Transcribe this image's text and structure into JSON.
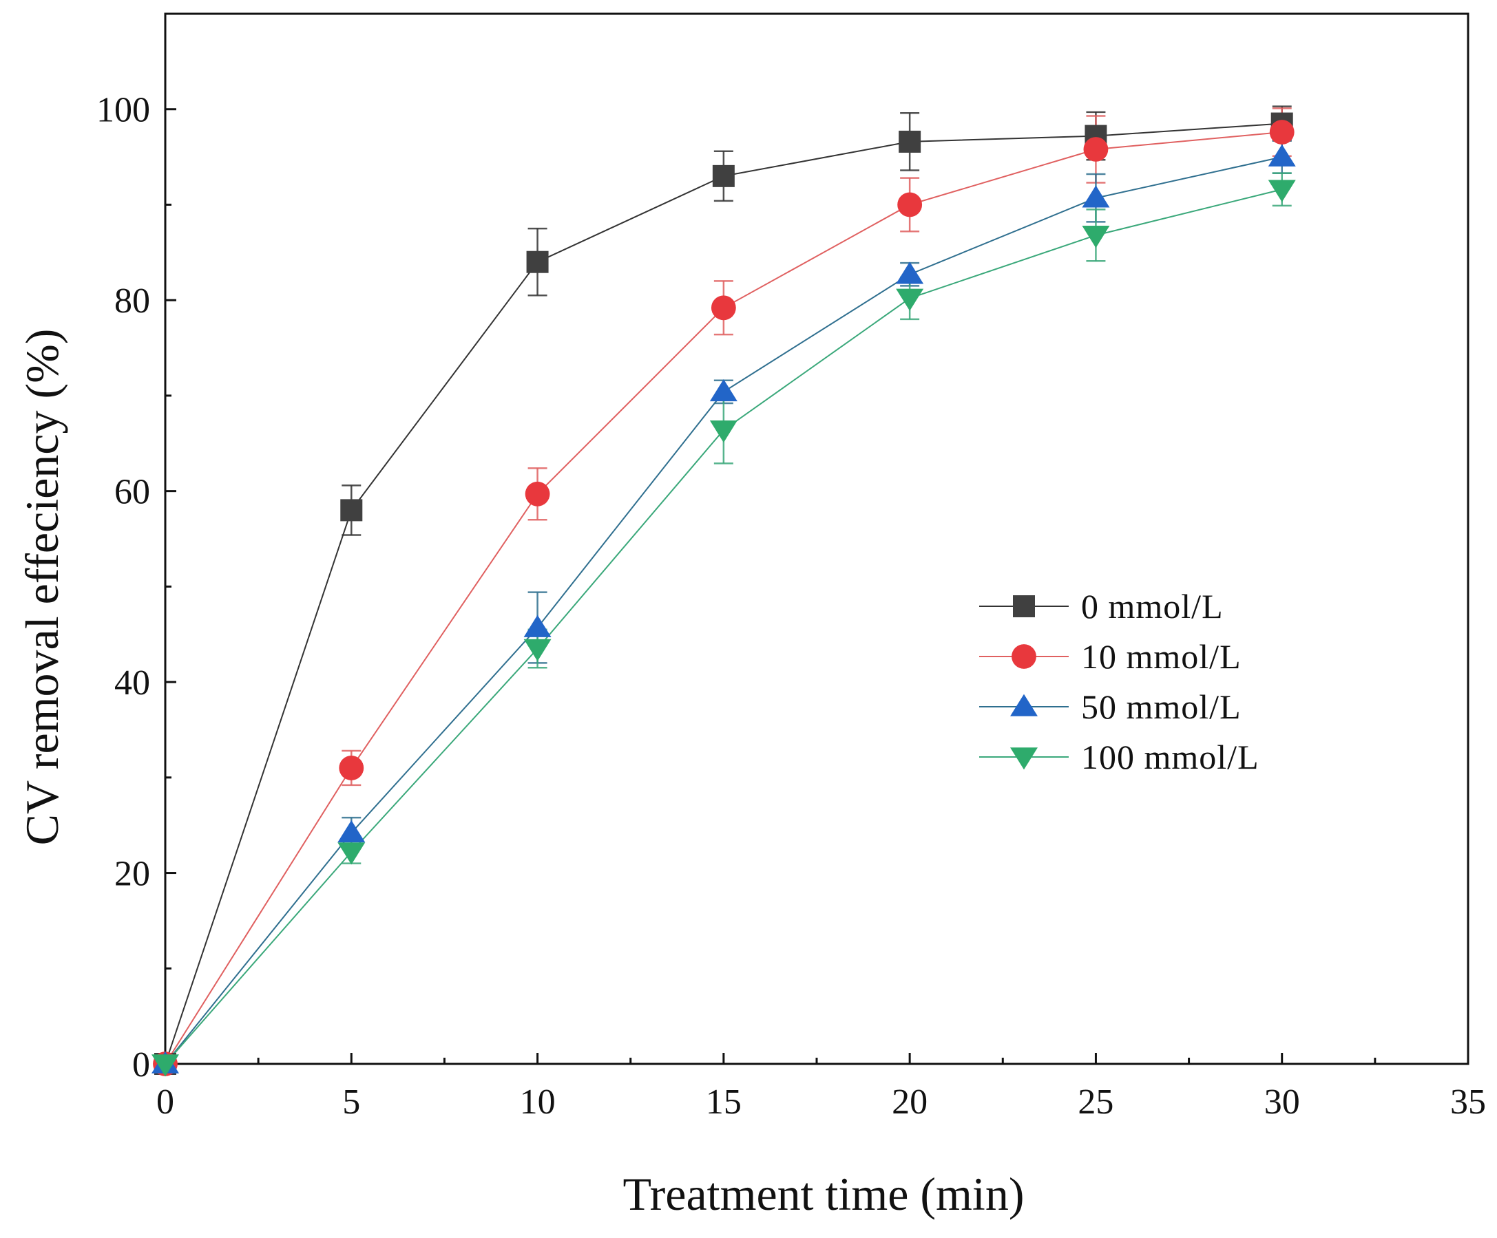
{
  "chart_data": {
    "type": "line",
    "title": "",
    "xlabel": "Treatment time (min)",
    "ylabel": "CV removal effeciency (%)",
    "xlim": [
      0,
      35
    ],
    "ylim": [
      0,
      110
    ],
    "xticks": [
      0,
      5,
      10,
      15,
      20,
      25,
      30,
      35
    ],
    "yticks": [
      0,
      20,
      40,
      60,
      80,
      100
    ],
    "xtick_labels": [
      "0",
      "5",
      "10",
      "15",
      "20",
      "25",
      "30",
      "35"
    ],
    "ytick_labels": [
      "0",
      "20",
      "40",
      "60",
      "80",
      "100"
    ],
    "grid": false,
    "legend_position": "center-right",
    "x": [
      0,
      5,
      10,
      15,
      20,
      25,
      30
    ],
    "series": [
      {
        "name": "0 mmol/L",
        "marker": "square",
        "color": "#404040",
        "line_color": "#333333",
        "values": [
          0,
          58,
          84,
          93,
          96.6,
          97.2,
          98.5
        ],
        "errors": [
          0,
          2.6,
          3.5,
          2.6,
          3.0,
          2.5,
          1.8
        ]
      },
      {
        "name": "10 mmol/L",
        "marker": "circle",
        "color": "#e8383d",
        "line_color": "#e06060",
        "values": [
          0,
          31,
          59.7,
          79.2,
          90,
          95.8,
          97.6
        ],
        "errors": [
          0,
          1.8,
          2.7,
          2.8,
          2.8,
          3.5,
          2.5
        ]
      },
      {
        "name": "50 mmol/L",
        "marker": "triangle-up",
        "color": "#2265c8",
        "line_color": "#2f6f8f",
        "values": [
          0,
          24.2,
          45.7,
          70.4,
          82.7,
          90.7,
          95
        ],
        "errors": [
          0,
          1.6,
          3.7,
          1.2,
          1.2,
          2.5,
          1.7
        ]
      },
      {
        "name": "100 mmol/L",
        "marker": "triangle-down",
        "color": "#2eab6c",
        "line_color": "#3aa87a",
        "values": [
          0,
          22.2,
          43.5,
          66.4,
          80.2,
          86.8,
          91.6
        ],
        "errors": [
          0,
          1.2,
          2.0,
          3.5,
          2.2,
          2.7,
          1.7
        ]
      }
    ]
  }
}
